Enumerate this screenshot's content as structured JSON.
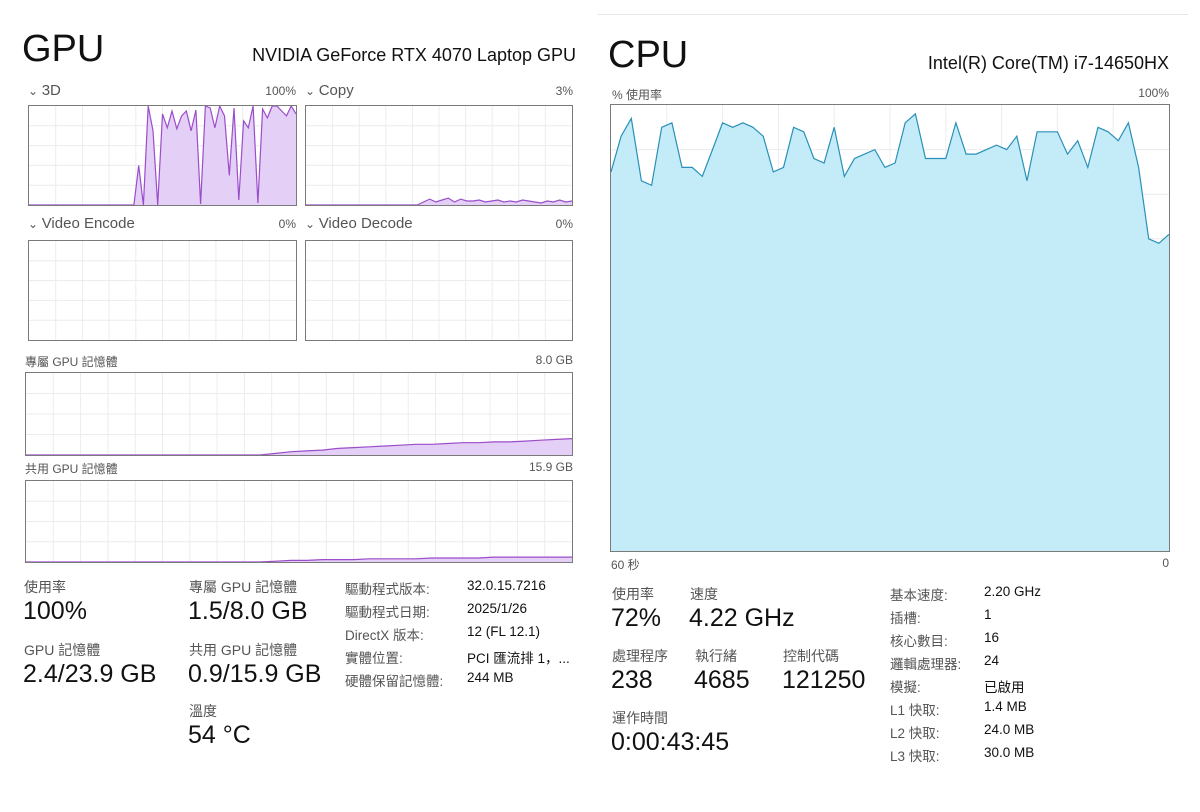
{
  "gpu": {
    "title": "GPU",
    "device_name": "NVIDIA GeForce RTX 4070 Laptop GPU",
    "engines": [
      {
        "label": "3D",
        "max": "100%"
      },
      {
        "label": "Copy",
        "max": "3%"
      },
      {
        "label": "Video Encode",
        "max": "0%"
      },
      {
        "label": "Video Decode",
        "max": "0%"
      }
    ],
    "dedicated_memory_graph": {
      "label": "專屬 GPU 記憶體",
      "max": "8.0 GB"
    },
    "shared_memory_graph": {
      "label": "共用 GPU 記憶體",
      "max": "15.9 GB"
    },
    "stats": {
      "utilization_label": "使用率",
      "utilization_value": "100%",
      "gpu_memory_label": "GPU 記憶體",
      "gpu_memory_value": "2.4/23.9 GB",
      "dedicated_label": "專屬 GPU 記憶體",
      "dedicated_value": "1.5/8.0 GB",
      "shared_label": "共用 GPU 記憶體",
      "shared_value": "0.9/15.9 GB",
      "temp_label": "溫度",
      "temp_value": "54 °C"
    },
    "details": [
      {
        "key": "驅動程式版本:",
        "value": "32.0.15.7216"
      },
      {
        "key": "驅動程式日期:",
        "value": "2025/1/26"
      },
      {
        "key": "DirectX 版本:",
        "value": "12 (FL 12.1)"
      },
      {
        "key": "實體位置:",
        "value": "PCI 匯流排 1，..."
      },
      {
        "key": "硬體保留記憶體:",
        "value": "244 MB"
      }
    ],
    "colors": {
      "line": "#9b4dca",
      "fill": "#e4cff6"
    }
  },
  "cpu": {
    "title": "CPU",
    "device_name": "Intel(R) Core(TM) i7-14650HX",
    "graph_label": "% 使用率",
    "graph_max": "100%",
    "time_left": "60 秒",
    "time_right": "0",
    "stats": {
      "utilization_label": "使用率",
      "utilization_value": "72%",
      "speed_label": "速度",
      "speed_value": "4.22 GHz",
      "processes_label": "處理程序",
      "processes_value": "238",
      "threads_label": "執行緒",
      "threads_value": "4685",
      "handles_label": "控制代碼",
      "handles_value": "121250",
      "uptime_label": "運作時間",
      "uptime_value": "0:00:43:45"
    },
    "details": [
      {
        "key": "基本速度:",
        "value": "2.20 GHz"
      },
      {
        "key": "插槽:",
        "value": "1"
      },
      {
        "key": "核心數目:",
        "value": "16"
      },
      {
        "key": "邏輯處理器:",
        "value": "24"
      },
      {
        "key": "模擬:",
        "value": "已啟用"
      },
      {
        "key": "L1 快取:",
        "value": "1.4 MB"
      },
      {
        "key": "L2 快取:",
        "value": "24.0 MB"
      },
      {
        "key": "L3 快取:",
        "value": "30.0 MB"
      }
    ],
    "colors": {
      "line": "#2a90b8",
      "fill": "#c3ebf8"
    }
  }
}
